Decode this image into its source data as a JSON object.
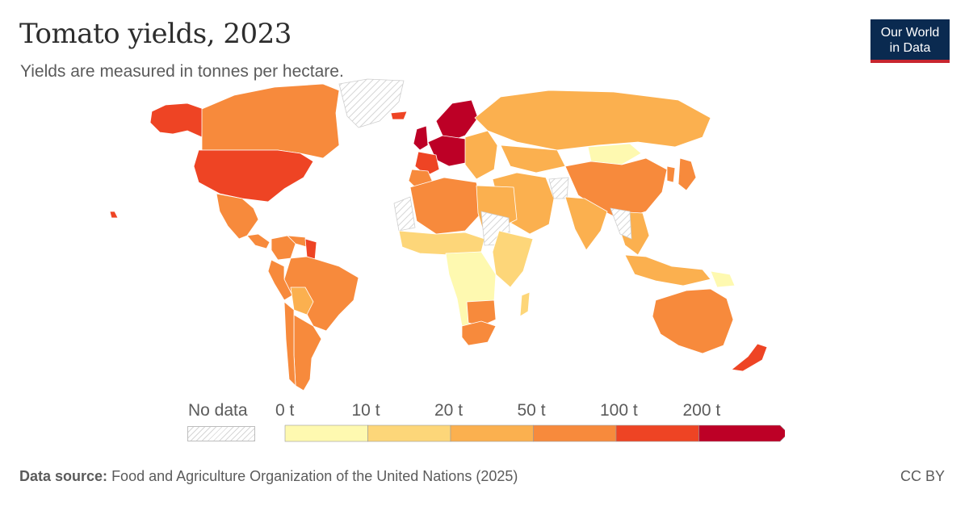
{
  "header": {
    "title": "Tomato yields, 2023",
    "subtitle": "Yields are measured in tonnes per hectare.",
    "logo_line1": "Our World",
    "logo_line2": "in Data"
  },
  "legend": {
    "no_data_label": "No data",
    "bins": [
      {
        "label": "0 t",
        "color": "#fef9b0"
      },
      {
        "label": "10 t",
        "color": "#fdd679"
      },
      {
        "label": "20 t",
        "color": "#fbb04f"
      },
      {
        "label": "50 t",
        "color": "#f78a3c"
      },
      {
        "label": "100 t",
        "color": "#ee4424"
      },
      {
        "label": "200 t",
        "color": "#bd0026"
      }
    ]
  },
  "colors": {
    "no_data_hatch": "#d6d6d6",
    "logo_bg": "#0a2a50",
    "logo_accent": "#c8262f"
  },
  "map": {
    "regions": [
      {
        "name": "Alaska",
        "bin": 4
      },
      {
        "name": "Canada",
        "bin": 3
      },
      {
        "name": "United States",
        "bin": 4
      },
      {
        "name": "Greenland",
        "bin": null
      },
      {
        "name": "Mexico",
        "bin": 3
      },
      {
        "name": "Central America",
        "bin": 3
      },
      {
        "name": "Colombia",
        "bin": 3
      },
      {
        "name": "Venezuela",
        "bin": 3
      },
      {
        "name": "Guyana",
        "bin": 4
      },
      {
        "name": "Brazil",
        "bin": 3
      },
      {
        "name": "Peru",
        "bin": 3
      },
      {
        "name": "Bolivia",
        "bin": 2
      },
      {
        "name": "Argentina",
        "bin": 3
      },
      {
        "name": "Chile",
        "bin": 3
      },
      {
        "name": "Iceland",
        "bin": 4
      },
      {
        "name": "United Kingdom",
        "bin": 5
      },
      {
        "name": "Scandinavia",
        "bin": 5
      },
      {
        "name": "Western Europe",
        "bin": 5
      },
      {
        "name": "France",
        "bin": 4
      },
      {
        "name": "Iberia",
        "bin": 3
      },
      {
        "name": "Eastern Europe",
        "bin": 2
      },
      {
        "name": "Russia",
        "bin": 2
      },
      {
        "name": "Kazakhstan",
        "bin": 2
      },
      {
        "name": "Mongolia",
        "bin": 0
      },
      {
        "name": "China",
        "bin": 3
      },
      {
        "name": "Korea",
        "bin": 3
      },
      {
        "name": "Japan",
        "bin": 3
      },
      {
        "name": "Middle East",
        "bin": 2
      },
      {
        "name": "Afghanistan",
        "bin": null
      },
      {
        "name": "India",
        "bin": 2
      },
      {
        "name": "Southeast Asia",
        "bin": 2
      },
      {
        "name": "Myanmar Laos",
        "bin": null
      },
      {
        "name": "North Africa",
        "bin": 3
      },
      {
        "name": "Western Sahara",
        "bin": null
      },
      {
        "name": "Libya Egypt",
        "bin": 2
      },
      {
        "name": "Sahel",
        "bin": 1
      },
      {
        "name": "Sudan",
        "bin": null
      },
      {
        "name": "East Africa",
        "bin": 1
      },
      {
        "name": "Central Africa",
        "bin": 0
      },
      {
        "name": "Southern Africa",
        "bin": 3
      },
      {
        "name": "South Africa",
        "bin": 3
      },
      {
        "name": "Madagascar",
        "bin": 1
      },
      {
        "name": "Indonesia",
        "bin": 2
      },
      {
        "name": "Papua New Guinea",
        "bin": 0
      },
      {
        "name": "Australia",
        "bin": 3
      },
      {
        "name": "New Zealand",
        "bin": 4
      },
      {
        "name": "Hawaii",
        "bin": 4
      }
    ]
  },
  "footer": {
    "source_label": "Data source:",
    "source_text": "Food and Agriculture Organization of the United Nations (2025)",
    "license": "CC BY"
  }
}
